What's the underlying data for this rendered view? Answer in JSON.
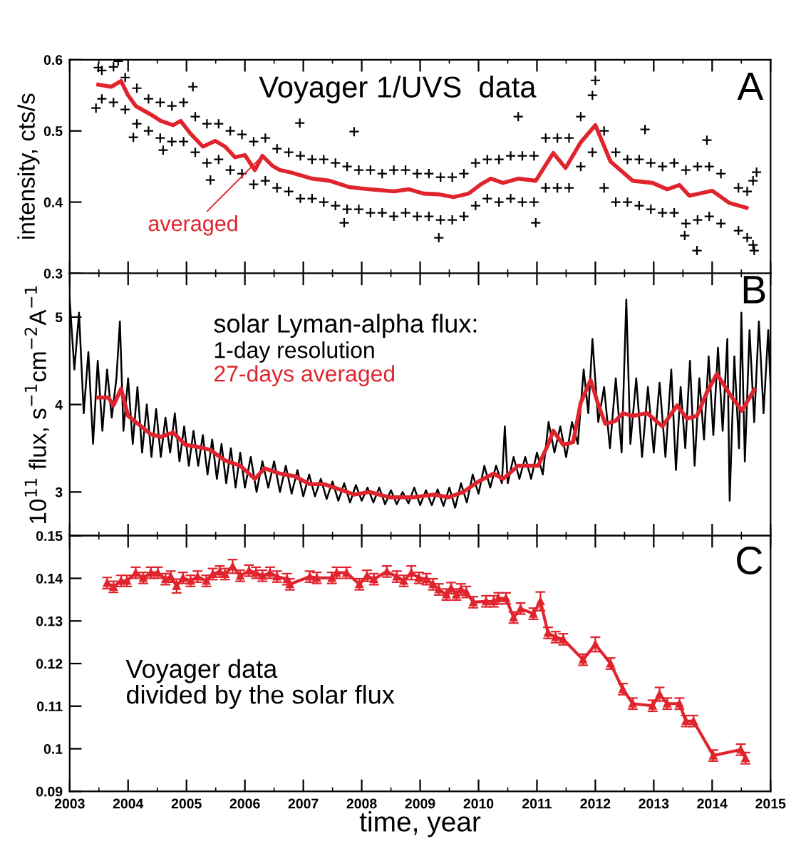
{
  "chart_data": [
    {
      "type": "line",
      "ylabel": "intensity, cts/s",
      "xlim": [
        2003,
        2015
      ],
      "xticks": [
        2003,
        2004,
        2005,
        2006,
        2007,
        2008,
        2009,
        2010,
        2011,
        2012,
        2013,
        2014,
        2015
      ],
      "ylim": [
        0.3,
        0.6
      ],
      "yticks": [
        0.3,
        0.4,
        0.5,
        0.6
      ],
      "tick_labels": "y",
      "annotations": [
        "Voyager 1/UVS  data",
        "A",
        {
          "text": "averaged",
          "x": 2006.3,
          "y": 0.465
        }
      ],
      "series": [
        {
          "type": "scatter",
          "marker": "cross",
          "color": "#000000",
          "x": [
            2003.45,
            2003.49,
            2003.83,
            2004.09,
            2004.6,
            2005.11,
            2005.41,
            2006.94,
            2007.87,
            2007.7,
            2009.32,
            2010.68,
            2010.98,
            2012.0,
            2012.85,
            2013.53,
            2013.74,
            2013.91,
            2014.72,
            2014.76,
            2003.55,
            2003.55,
            2003.75,
            2003.75,
            2003.95,
            2003.95,
            2004.15,
            2004.15,
            2004.35,
            2004.35,
            2004.55,
            2004.55,
            2004.75,
            2004.75,
            2004.95,
            2004.95,
            2005.15,
            2005.15,
            2005.35,
            2005.35,
            2005.55,
            2005.55,
            2005.75,
            2005.75,
            2005.95,
            2005.95,
            2006.15,
            2006.15,
            2006.35,
            2006.35,
            2006.55,
            2006.55,
            2006.75,
            2006.75,
            2006.95,
            2006.95,
            2007.15,
            2007.15,
            2007.35,
            2007.35,
            2007.55,
            2007.55,
            2007.75,
            2007.75,
            2007.95,
            2007.95,
            2008.15,
            2008.15,
            2008.35,
            2008.35,
            2008.55,
            2008.55,
            2008.75,
            2008.75,
            2008.95,
            2008.95,
            2009.15,
            2009.15,
            2009.35,
            2009.35,
            2009.55,
            2009.55,
            2009.75,
            2009.75,
            2009.95,
            2009.95,
            2010.15,
            2010.15,
            2010.35,
            2010.35,
            2010.55,
            2010.55,
            2010.75,
            2010.75,
            2010.95,
            2010.95,
            2011.15,
            2011.15,
            2011.35,
            2011.35,
            2011.55,
            2011.55,
            2011.75,
            2011.75,
            2011.95,
            2011.95,
            2012.15,
            2012.15,
            2012.35,
            2012.35,
            2012.55,
            2012.55,
            2012.75,
            2012.75,
            2012.95,
            2012.95,
            2013.15,
            2013.15,
            2013.35,
            2013.35,
            2013.55,
            2013.55,
            2013.75,
            2013.75,
            2013.95,
            2013.95,
            2014.15,
            2014.15,
            2014.45,
            2014.45,
            2014.6,
            2014.6,
            2014.7,
            2014.7
          ],
          "values": [
            0.532,
            0.589,
            0.598,
            0.491,
            0.473,
            0.562,
            0.431,
            0.511,
            0.499,
            0.371,
            0.35,
            0.52,
            0.371,
            0.571,
            0.502,
            0.353,
            0.332,
            0.487,
            0.332,
            0.442,
            0.585,
            0.545,
            0.59,
            0.54,
            0.575,
            0.53,
            0.56,
            0.51,
            0.545,
            0.5,
            0.54,
            0.49,
            0.535,
            0.485,
            0.54,
            0.485,
            0.52,
            0.47,
            0.51,
            0.455,
            0.51,
            0.46,
            0.5,
            0.445,
            0.495,
            0.44,
            0.485,
            0.425,
            0.49,
            0.43,
            0.475,
            0.42,
            0.47,
            0.415,
            0.465,
            0.405,
            0.46,
            0.405,
            0.46,
            0.4,
            0.455,
            0.395,
            0.45,
            0.39,
            0.445,
            0.39,
            0.445,
            0.385,
            0.44,
            0.385,
            0.445,
            0.38,
            0.445,
            0.385,
            0.44,
            0.38,
            0.44,
            0.38,
            0.435,
            0.375,
            0.435,
            0.375,
            0.44,
            0.38,
            0.455,
            0.395,
            0.46,
            0.405,
            0.46,
            0.4,
            0.465,
            0.405,
            0.465,
            0.4,
            0.465,
            0.4,
            0.49,
            0.42,
            0.49,
            0.42,
            0.49,
            0.42,
            0.52,
            0.45,
            0.55,
            0.47,
            0.5,
            0.42,
            0.47,
            0.4,
            0.46,
            0.4,
            0.46,
            0.395,
            0.455,
            0.39,
            0.45,
            0.385,
            0.455,
            0.385,
            0.445,
            0.37,
            0.45,
            0.375,
            0.45,
            0.38,
            0.44,
            0.37,
            0.42,
            0.36,
            0.415,
            0.35,
            0.43,
            0.34
          ]
        },
        {
          "color": "#e0242e",
          "x": [
            2003.49,
            2003.71,
            2003.88,
            2004.0,
            2004.13,
            2004.39,
            2004.56,
            2004.77,
            2004.9,
            2005.07,
            2005.28,
            2005.49,
            2005.66,
            2005.83,
            2006.0,
            2006.17,
            2006.3,
            2006.47,
            2006.6,
            2006.77,
            2007.15,
            2007.45,
            2007.79,
            2008.13,
            2008.55,
            2008.81,
            2009.06,
            2009.32,
            2009.57,
            2009.83,
            2010.04,
            2010.21,
            2010.42,
            2010.68,
            2010.98,
            2011.28,
            2011.49,
            2011.75,
            2012.0,
            2012.26,
            2012.64,
            2012.98,
            2013.23,
            2013.44,
            2013.61,
            2014.0,
            2014.29,
            2014.59
          ],
          "values": [
            0.565,
            0.562,
            0.57,
            0.55,
            0.535,
            0.523,
            0.514,
            0.508,
            0.514,
            0.496,
            0.478,
            0.486,
            0.478,
            0.463,
            0.466,
            0.445,
            0.465,
            0.451,
            0.445,
            0.442,
            0.433,
            0.43,
            0.421,
            0.418,
            0.415,
            0.418,
            0.412,
            0.411,
            0.407,
            0.412,
            0.425,
            0.433,
            0.427,
            0.433,
            0.43,
            0.469,
            0.448,
            0.484,
            0.508,
            0.457,
            0.43,
            0.427,
            0.418,
            0.424,
            0.409,
            0.416,
            0.399,
            0.392
          ]
        }
      ]
    },
    {
      "type": "line",
      "ylabel": "10$^{11}$ flux, s$^{−1}$cm$^{−2}$A$^{−1}$",
      "legend_title": "solar Lyman-alpha flux:",
      "xlim": [
        2003,
        2015
      ],
      "xticks": [
        2003,
        2004,
        2005,
        2006,
        2007,
        2008,
        2009,
        2010,
        2011,
        2012,
        2013,
        2014,
        2015
      ],
      "ylim": [
        2.5,
        5.5
      ],
      "yticks": [
        3,
        4,
        5
      ],
      "tick_labels": "y",
      "annotations": [
        "B"
      ],
      "series": [
        {
          "name": "1-day resolution",
          "color": "#000000",
          "x": [
            2003.0,
            2003.08,
            2003.16,
            2003.24,
            2003.32,
            2003.4,
            2003.48,
            2003.56,
            2003.64,
            2003.72,
            2003.8,
            2003.86,
            2003.92,
            2004.0,
            2004.08,
            2004.16,
            2004.24,
            2004.32,
            2004.4,
            2004.48,
            2004.56,
            2004.64,
            2004.72,
            2004.8,
            2004.88,
            2004.96,
            2005.04,
            2005.12,
            2005.2,
            2005.28,
            2005.36,
            2005.44,
            2005.52,
            2005.6,
            2005.68,
            2005.76,
            2005.84,
            2005.92,
            2006.0,
            2006.1,
            2006.2,
            2006.3,
            2006.4,
            2006.5,
            2006.6,
            2006.7,
            2006.8,
            2006.9,
            2007.0,
            2007.1,
            2007.2,
            2007.3,
            2007.4,
            2007.5,
            2007.6,
            2007.7,
            2007.8,
            2007.9,
            2008.0,
            2008.1,
            2008.2,
            2008.3,
            2008.4,
            2008.5,
            2008.6,
            2008.7,
            2008.8,
            2008.9,
            2009.0,
            2009.1,
            2009.2,
            2009.3,
            2009.4,
            2009.5,
            2009.6,
            2009.7,
            2009.8,
            2009.9,
            2010.0,
            2010.1,
            2010.2,
            2010.3,
            2010.4,
            2010.45,
            2010.5,
            2010.6,
            2010.7,
            2010.8,
            2010.9,
            2011.0,
            2011.1,
            2011.2,
            2011.3,
            2011.4,
            2011.5,
            2011.6,
            2011.7,
            2011.8,
            2011.88,
            2011.95,
            2012.05,
            2012.15,
            2012.25,
            2012.35,
            2012.45,
            2012.53,
            2012.6,
            2012.7,
            2012.8,
            2012.9,
            2013.0,
            2013.1,
            2013.2,
            2013.3,
            2013.38,
            2013.46,
            2013.54,
            2013.62,
            2013.7,
            2013.78,
            2013.86,
            2013.94,
            2014.02,
            2014.1,
            2014.18,
            2014.26,
            2014.3,
            2014.38,
            2014.46,
            2014.5,
            2014.56,
            2014.64,
            2014.72,
            2014.8,
            2014.88,
            2014.96,
            2015.0
          ],
          "values": [
            5.2,
            4.4,
            5.05,
            3.9,
            4.6,
            3.55,
            4.5,
            3.7,
            4.4,
            3.85,
            4.3,
            4.95,
            3.7,
            4.3,
            3.55,
            4.2,
            3.45,
            4.0,
            3.4,
            3.95,
            3.4,
            3.85,
            3.45,
            3.9,
            3.35,
            3.75,
            3.3,
            3.7,
            3.3,
            3.65,
            3.2,
            3.6,
            3.15,
            3.55,
            3.1,
            3.5,
            3.05,
            3.45,
            3.05,
            3.4,
            3.0,
            3.35,
            3.05,
            3.35,
            3.0,
            3.3,
            2.98,
            3.25,
            2.95,
            3.2,
            2.95,
            3.15,
            2.92,
            3.12,
            2.9,
            3.1,
            2.88,
            3.08,
            2.9,
            3.05,
            2.88,
            3.05,
            2.86,
            3.02,
            2.86,
            3.0,
            2.87,
            3.05,
            2.85,
            3.02,
            2.85,
            3.03,
            2.84,
            3.05,
            2.82,
            3.1,
            2.88,
            3.2,
            2.98,
            3.3,
            3.05,
            3.3,
            3.1,
            3.75,
            3.1,
            3.4,
            3.15,
            3.4,
            3.15,
            3.45,
            3.2,
            3.8,
            3.45,
            3.75,
            3.4,
            3.8,
            3.55,
            4.4,
            3.9,
            4.75,
            3.8,
            4.2,
            3.5,
            4.3,
            3.45,
            5.2,
            3.55,
            4.3,
            3.4,
            4.2,
            3.45,
            4.25,
            3.4,
            4.4,
            3.25,
            4.2,
            3.5,
            4.5,
            3.3,
            4.3,
            3.6,
            4.55,
            3.65,
            4.65,
            3.7,
            4.75,
            2.9,
            4.55,
            3.5,
            5.05,
            3.35,
            4.85,
            3.8,
            4.95,
            3.9,
            4.85,
            4.2
          ]
        },
        {
          "name": "27-days averaged",
          "color": "#e0242e",
          "x": [
            2003.49,
            2003.66,
            2003.75,
            2003.88,
            2004.0,
            2004.17,
            2004.39,
            2004.56,
            2004.77,
            2004.98,
            2005.24,
            2005.41,
            2005.66,
            2005.92,
            2006.17,
            2006.34,
            2006.6,
            2006.85,
            2007.11,
            2007.36,
            2007.62,
            2007.87,
            2008.13,
            2008.47,
            2008.89,
            2009.23,
            2009.49,
            2009.74,
            2010.0,
            2010.26,
            2010.42,
            2010.68,
            2011.02,
            2011.19,
            2011.28,
            2011.45,
            2011.62,
            2011.75,
            2011.92,
            2012.04,
            2012.17,
            2012.34,
            2012.47,
            2012.64,
            2012.89,
            2013.15,
            2013.4,
            2013.57,
            2013.74,
            2013.91,
            2014.08,
            2014.34,
            2014.51,
            2014.72
          ],
          "values": [
            4.08,
            4.08,
            3.99,
            4.18,
            3.87,
            3.78,
            3.66,
            3.63,
            3.68,
            3.54,
            3.51,
            3.48,
            3.36,
            3.3,
            3.15,
            3.27,
            3.21,
            3.18,
            3.09,
            3.09,
            3.03,
            2.97,
            3.0,
            2.94,
            2.94,
            2.97,
            2.94,
            3.0,
            3.12,
            3.21,
            3.15,
            3.3,
            3.3,
            3.54,
            3.7,
            3.54,
            3.57,
            4.02,
            4.28,
            4.02,
            3.78,
            3.81,
            3.9,
            3.87,
            3.9,
            3.75,
            3.99,
            3.84,
            3.87,
            4.14,
            4.35,
            4.08,
            3.93,
            4.17
          ]
        }
      ]
    },
    {
      "type": "line",
      "xlabel": "time, year",
      "xlim": [
        2003,
        2015
      ],
      "xticks": [
        2003,
        2004,
        2005,
        2006,
        2007,
        2008,
        2009,
        2010,
        2011,
        2012,
        2013,
        2014,
        2015
      ],
      "ylim": [
        0.09,
        0.15
      ],
      "yticks": [
        0.09,
        0.1,
        0.11,
        0.12,
        0.13,
        0.14,
        0.15
      ],
      "annotations": [
        "Voyager data\ndivided by the solar flux",
        "C"
      ],
      "series": [
        {
          "marker": "triangle",
          "color": "#e0242e",
          "x": [
            2003.64,
            2003.75,
            2003.88,
            2003.98,
            2004.13,
            2004.26,
            2004.39,
            2004.51,
            2004.64,
            2004.73,
            2004.83,
            2004.94,
            2005.07,
            2005.19,
            2005.34,
            2005.45,
            2005.57,
            2005.66,
            2005.79,
            2005.92,
            2006.07,
            2006.19,
            2006.3,
            2006.43,
            2006.55,
            2006.72,
            2006.77,
            2007.11,
            2007.23,
            2007.49,
            2007.57,
            2007.74,
            2007.96,
            2008.09,
            2008.21,
            2008.43,
            2008.6,
            2008.72,
            2008.85,
            2008.98,
            2009.11,
            2009.22,
            2009.32,
            2009.45,
            2009.53,
            2009.62,
            2009.7,
            2009.79,
            2009.91,
            2010.13,
            2010.26,
            2010.34,
            2010.47,
            2010.6,
            2010.72,
            2010.94,
            2011.06,
            2011.19,
            2011.32,
            2011.45,
            2011.79,
            2012.0,
            2012.26,
            2012.47,
            2012.64,
            2012.98,
            2013.1,
            2013.23,
            2013.44,
            2013.55,
            2013.68,
            2014.02,
            2014.49,
            2014.57
          ],
          "values": [
            0.1389,
            0.138,
            0.1394,
            0.1394,
            0.1413,
            0.1401,
            0.1413,
            0.1413,
            0.1398,
            0.1404,
            0.1382,
            0.1401,
            0.1394,
            0.1404,
            0.1394,
            0.141,
            0.1416,
            0.141,
            0.1428,
            0.1406,
            0.1418,
            0.1413,
            0.1406,
            0.1413,
            0.1404,
            0.1398,
            0.1386,
            0.1404,
            0.1401,
            0.1401,
            0.1413,
            0.1413,
            0.1386,
            0.1406,
            0.1398,
            0.1416,
            0.1404,
            0.1394,
            0.1413,
            0.1401,
            0.1398,
            0.1386,
            0.1374,
            0.1362,
            0.1377,
            0.1362,
            0.1374,
            0.1368,
            0.1344,
            0.1346,
            0.1346,
            0.1353,
            0.1353,
            0.1308,
            0.1329,
            0.1317,
            0.1346,
            0.1272,
            0.1262,
            0.1257,
            0.1209,
            0.1245,
            0.12,
            0.114,
            0.1106,
            0.1101,
            0.1128,
            0.1106,
            0.1106,
            0.1065,
            0.1065,
            0.0984,
            0.0998,
            0.0978
          ],
          "errors": [
            0.0013,
            0.0013,
            0.0013,
            0.0013,
            0.0013,
            0.0013,
            0.0013,
            0.0013,
            0.0013,
            0.0013,
            0.0016,
            0.0013,
            0.0013,
            0.0013,
            0.0013,
            0.0013,
            0.0013,
            0.0013,
            0.0016,
            0.0013,
            0.0013,
            0.0013,
            0.0013,
            0.0013,
            0.0013,
            0.0013,
            0.0013,
            0.0013,
            0.0013,
            0.0013,
            0.0013,
            0.0013,
            0.0013,
            0.0013,
            0.0013,
            0.0013,
            0.0013,
            0.0013,
            0.0016,
            0.0013,
            0.0013,
            0.0013,
            0.0013,
            0.0013,
            0.0013,
            0.0013,
            0.0013,
            0.0013,
            0.0013,
            0.0013,
            0.0013,
            0.0013,
            0.0013,
            0.0013,
            0.0013,
            0.0013,
            0.0022,
            0.0013,
            0.0013,
            0.0013,
            0.0013,
            0.0017,
            0.0013,
            0.0013,
            0.0013,
            0.0013,
            0.0016,
            0.0013,
            0.0013,
            0.0013,
            0.0013,
            0.0013,
            0.0013,
            0.0013
          ]
        }
      ]
    }
  ]
}
